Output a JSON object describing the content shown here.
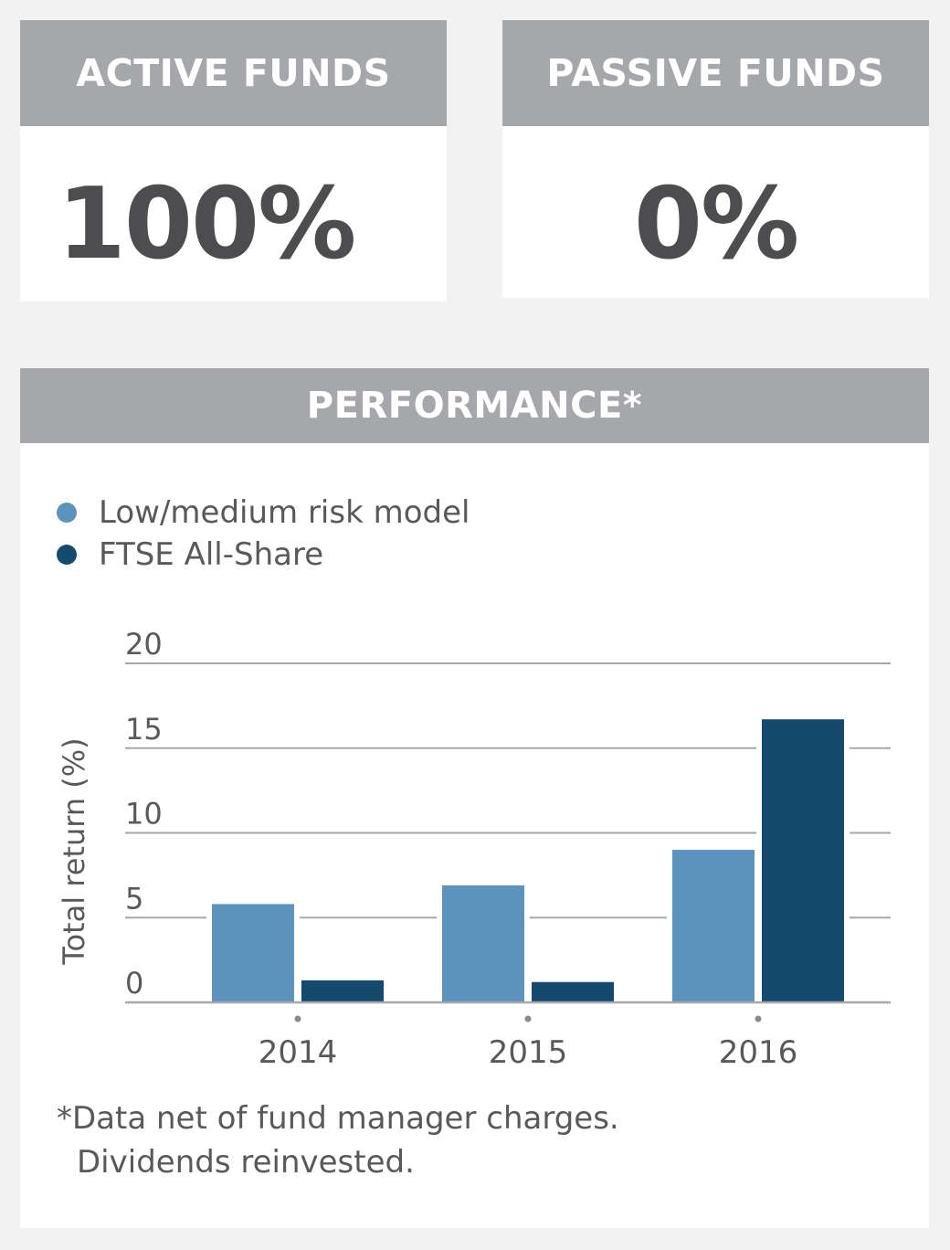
{
  "active": {
    "title": "ACTIVE FUNDS",
    "value": "100%"
  },
  "passive": {
    "title": "PASSIVE FUNDS",
    "value": "0%"
  },
  "performance": {
    "title": "PERFORMANCE*",
    "footnote_line1": "*Data net of fund manager charges.",
    "footnote_line2": "Dividends reinvested."
  },
  "colors": {
    "light_series": "#5b93bd",
    "dark_series": "#16496e",
    "header_gray": "#a6a7aa",
    "grid": "#a6a7aa"
  },
  "chart_data": {
    "type": "bar",
    "categories": [
      "2014",
      "2015",
      "2016"
    ],
    "series": [
      {
        "name": "Low/medium risk model",
        "values": [
          5.8,
          6.9,
          9.0
        ]
      },
      {
        "name": "FTSE All-Share",
        "values": [
          1.3,
          1.2,
          16.7
        ]
      }
    ],
    "ylabel": "Total return (%)",
    "xlabel": "",
    "ylim": [
      0,
      20
    ],
    "yticks": [
      "0",
      "5",
      "10",
      "15",
      "20"
    ],
    "grid": true,
    "legend": "top-left"
  }
}
